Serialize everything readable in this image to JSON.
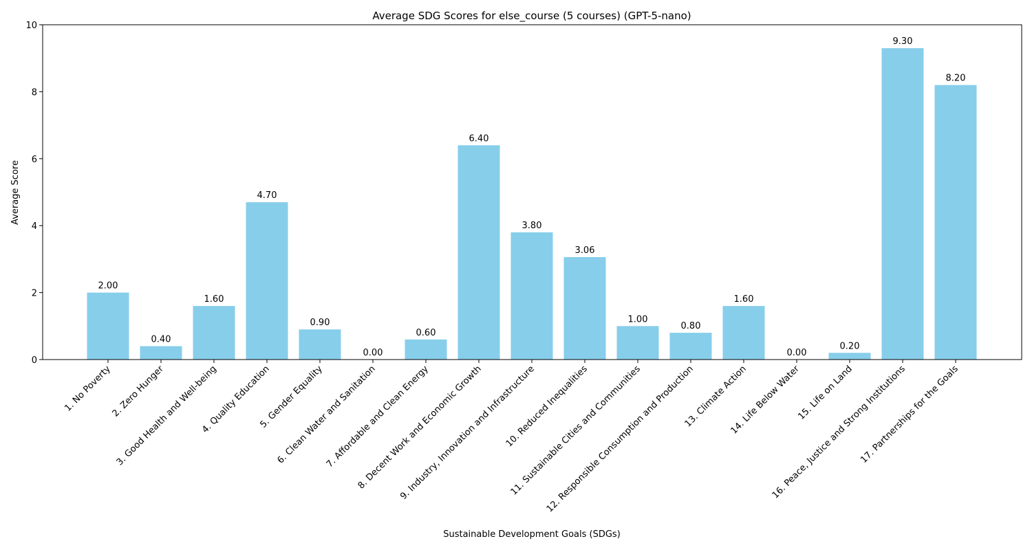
{
  "chart_data": {
    "type": "bar",
    "title": "Average SDG Scores for else_course (5 courses) (GPT-5-nano)",
    "xlabel": "Sustainable Development Goals (SDGs)",
    "ylabel": "Average Score",
    "ylim": [
      0,
      10
    ],
    "yticks": [
      "0",
      "2",
      "4",
      "6",
      "8",
      "10"
    ],
    "grid": false,
    "bar_color": "#87CEEB",
    "categories": [
      "1. No Poverty",
      "2. Zero Hunger",
      "3. Good Health and Well-being",
      "4. Quality Education",
      "5. Gender Equality",
      "6. Clean Water and Sanitation",
      "7. Affordable and Clean Energy",
      "8. Decent Work and Economic Growth",
      "9. Industry, Innovation and Infrastructure",
      "10. Reduced Inequalities",
      "11. Sustainable Cities and Communities",
      "12. Responsible Consumption and Production",
      "13. Climate Action",
      "14. Life Below Water",
      "15. Life on Land",
      "16. Peace, Justice and Strong Institutions",
      "17. Partnerships for the Goals"
    ],
    "values": [
      2.0,
      0.4,
      1.6,
      4.7,
      0.9,
      0.0,
      0.6,
      6.4,
      3.8,
      3.06,
      1.0,
      0.8,
      1.6,
      0.0,
      0.2,
      9.3,
      8.2
    ],
    "value_labels": [
      "2.00",
      "0.40",
      "1.60",
      "4.70",
      "0.90",
      "0.00",
      "0.60",
      "6.40",
      "3.80",
      "3.06",
      "1.00",
      "0.80",
      "1.60",
      "0.00",
      "0.20",
      "9.30",
      "8.20"
    ]
  }
}
